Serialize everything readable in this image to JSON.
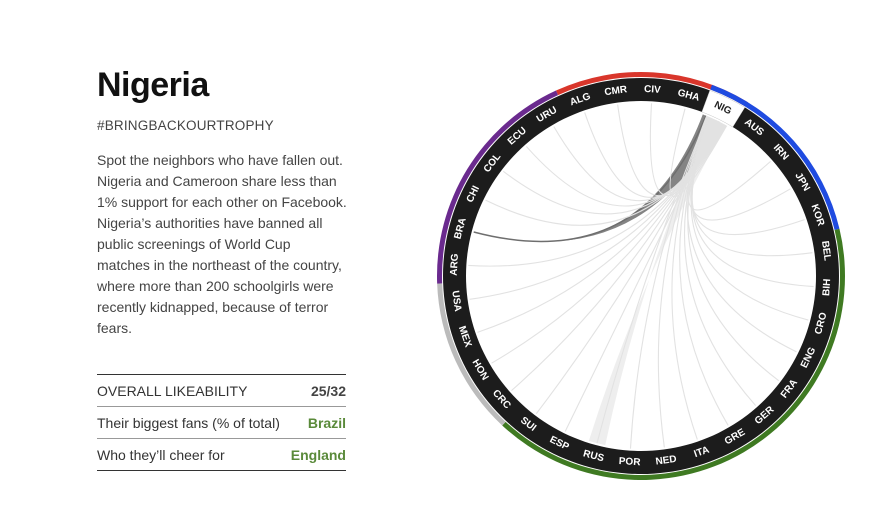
{
  "team": {
    "name": "Nigeria",
    "hashtag": "#BRINGBACKOURTROPHY",
    "description": "Spot the neighbors who have fallen out. Nigeria and Cameroon share less than 1% support for each other on Facebook. Nigeria’s authorities have banned all public screenings of World Cup matches in the northeast of the country, where more than 200 schoolgirls were recently kidnapped, because of terror fears."
  },
  "stats": [
    {
      "label": "OVERALL LIKEABILITY",
      "value": "25/32",
      "accent": false
    },
    {
      "label": "Their biggest fans (% of total)",
      "value": "Brazil",
      "accent": true
    },
    {
      "label": "Who they’ll cheer for",
      "value": "England",
      "accent": true
    }
  ],
  "wheel": {
    "selected": "NIG",
    "colors": {
      "ring": "#1c1c1c",
      "label": "#ffffff",
      "selected_bg": "#ffffff",
      "selected_label": "#222222",
      "group_red": "#d9362b",
      "group_blue": "#1f4be0",
      "group_green": "#3f7a22",
      "group_gray": "#bbbbbb",
      "group_purple": "#6a2a8e",
      "chord_strong": "#6f6f6f",
      "chord_light": "#e2e2e2"
    },
    "teams": [
      "NIG",
      "AUS",
      "IRN",
      "JPN",
      "KOR",
      "BEL",
      "BIH",
      "CRO",
      "ENG",
      "FRA",
      "GER",
      "GRE",
      "ITA",
      "NED",
      "POR",
      "RUS",
      "ESP",
      "SUI",
      "CRC",
      "HON",
      "MEX",
      "USA",
      "ARG",
      "BRA",
      "CHI",
      "COL",
      "ECU",
      "URU",
      "ALG",
      "CMR",
      "CIV",
      "GHA"
    ],
    "groups": [
      {
        "color": "group_red",
        "from": "ALG",
        "to": "NIG"
      },
      {
        "color": "group_blue",
        "from": "NIG",
        "to": "KOR"
      },
      {
        "color": "group_green",
        "from": "BEL",
        "to": "SUI"
      },
      {
        "color": "group_gray",
        "from": "CRC",
        "to": "USA"
      },
      {
        "color": "group_purple",
        "from": "ARG",
        "to": "URU"
      }
    ],
    "chords": [
      {
        "to": "BRA",
        "strength": "strong"
      },
      {
        "to": "ENG",
        "strength": "light"
      },
      {
        "to": "RUS",
        "strength": "light"
      },
      {
        "to": "POR",
        "strength": "light"
      },
      {
        "to": "NED",
        "strength": "light"
      },
      {
        "to": "ITA",
        "strength": "light"
      },
      {
        "to": "GRE",
        "strength": "light"
      },
      {
        "to": "GER",
        "strength": "light"
      },
      {
        "to": "FRA",
        "strength": "light"
      },
      {
        "to": "CRO",
        "strength": "light"
      },
      {
        "to": "BIH",
        "strength": "light"
      },
      {
        "to": "BEL",
        "strength": "light"
      },
      {
        "to": "KOR",
        "strength": "light"
      },
      {
        "to": "JPN",
        "strength": "light"
      },
      {
        "to": "IRN",
        "strength": "light"
      },
      {
        "to": "ESP",
        "strength": "light"
      },
      {
        "to": "SUI",
        "strength": "light"
      },
      {
        "to": "CRC",
        "strength": "light"
      },
      {
        "to": "HON",
        "strength": "light"
      },
      {
        "to": "MEX",
        "strength": "light"
      },
      {
        "to": "USA",
        "strength": "light"
      },
      {
        "to": "ARG",
        "strength": "light"
      },
      {
        "to": "CHI",
        "strength": "light"
      },
      {
        "to": "COL",
        "strength": "light"
      },
      {
        "to": "ECU",
        "strength": "light"
      },
      {
        "to": "URU",
        "strength": "light"
      },
      {
        "to": "ALG",
        "strength": "light"
      },
      {
        "to": "CMR",
        "strength": "light"
      },
      {
        "to": "CIV",
        "strength": "light"
      },
      {
        "to": "GHA",
        "strength": "light"
      }
    ]
  }
}
